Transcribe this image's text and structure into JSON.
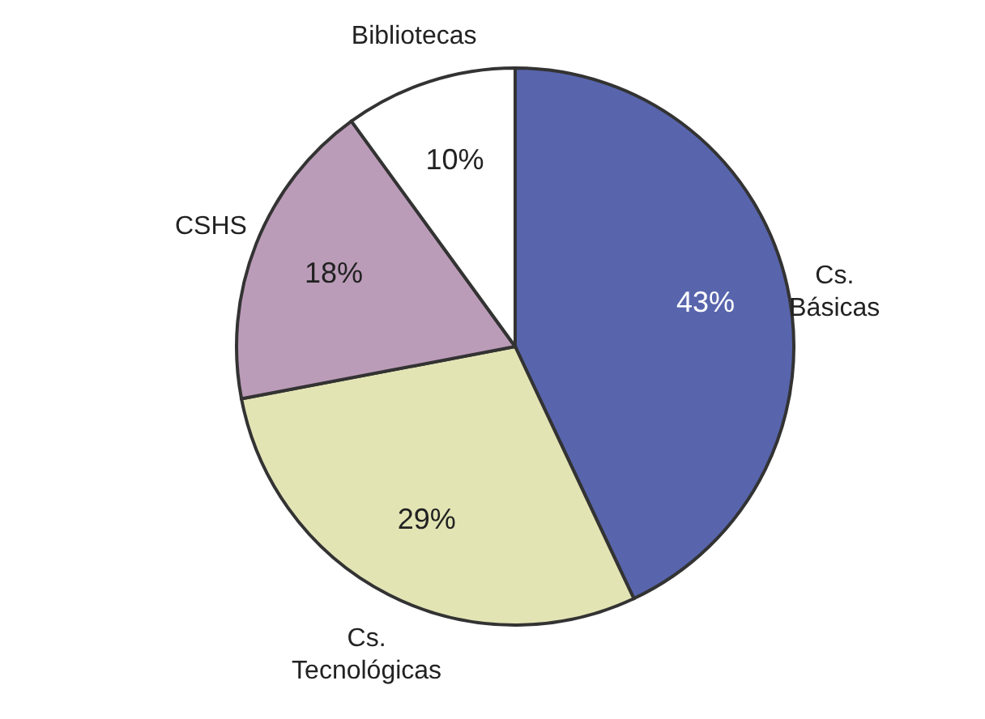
{
  "chart_data": {
    "type": "pie",
    "categories": [
      "Cs. Básicas",
      "Cs. Tecnológicas",
      "CSHS",
      "Bibliotecas"
    ],
    "values": [
      43,
      29,
      18,
      10
    ],
    "colors": [
      "#5865ad",
      "#e3e4b4",
      "#bb9cb8",
      "#ffffff"
    ],
    "value_labels": [
      "43%",
      "29%",
      "18%",
      "10%"
    ]
  }
}
